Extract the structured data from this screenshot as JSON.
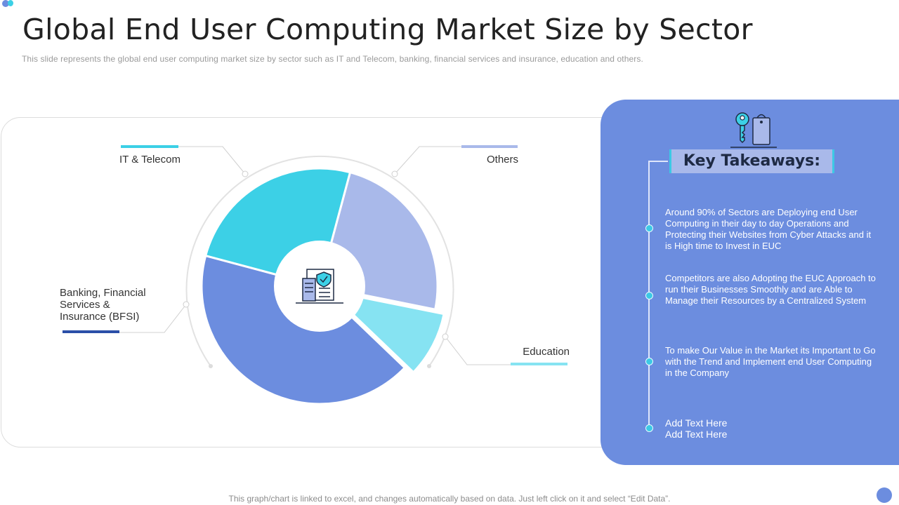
{
  "header": {
    "title": "Global End User Computing Market Size by Sector",
    "subtitle": "This slide represents the global end user computing market size by sector such as IT and Telecom, banking, financial services and insurance, education and others."
  },
  "chart_data": {
    "type": "pie",
    "title": "",
    "categories": [
      "Others",
      "Education",
      "Banking, Financial Services & Insurance (BFSI)",
      "IT & Telecom"
    ],
    "values": [
      24,
      9,
      42,
      25
    ],
    "exploded": [
      "Education"
    ],
    "colors": [
      "#a9b9ea",
      "#86e3f2",
      "#6c8ddf",
      "#3cd0e6"
    ],
    "labels": [
      {
        "lines": [
          "IT & Telecom"
        ]
      },
      {
        "lines": [
          "Others"
        ]
      },
      {
        "lines": [
          "Banking, Financial",
          "Services &",
          "Insurance (BFSI)"
        ]
      },
      {
        "lines": [
          "Education"
        ]
      }
    ],
    "center_icon": "document-security-icon"
  },
  "takeaways": {
    "icon": "key-tag-icon",
    "title": "Key Takeaways:",
    "items": [
      "Around 90% of Sectors are Deploying end User Computing in their day to day Operations and Protecting their Websites from Cyber Attacks and it is High time to Invest  in EUC",
      "Competitors are also Adopting the EUC Approach to run their Businesses Smoothly and are Able to Manage their Resources by a Centralized System",
      "To make Our Value in the Market its Important to Go with the Trend and Implement end User Computing in the Company",
      "Add Text Here\nAdd Text Here"
    ]
  },
  "footer": {
    "note": "This graph/chart is linked to excel,  and changes automatically based on data. Just left click on it and select “Edit Data”."
  },
  "colors": {
    "accent_blue": "#6c8ddf",
    "accent_cyan": "#3cd0e6",
    "accent_light": "#a9b9ea"
  }
}
